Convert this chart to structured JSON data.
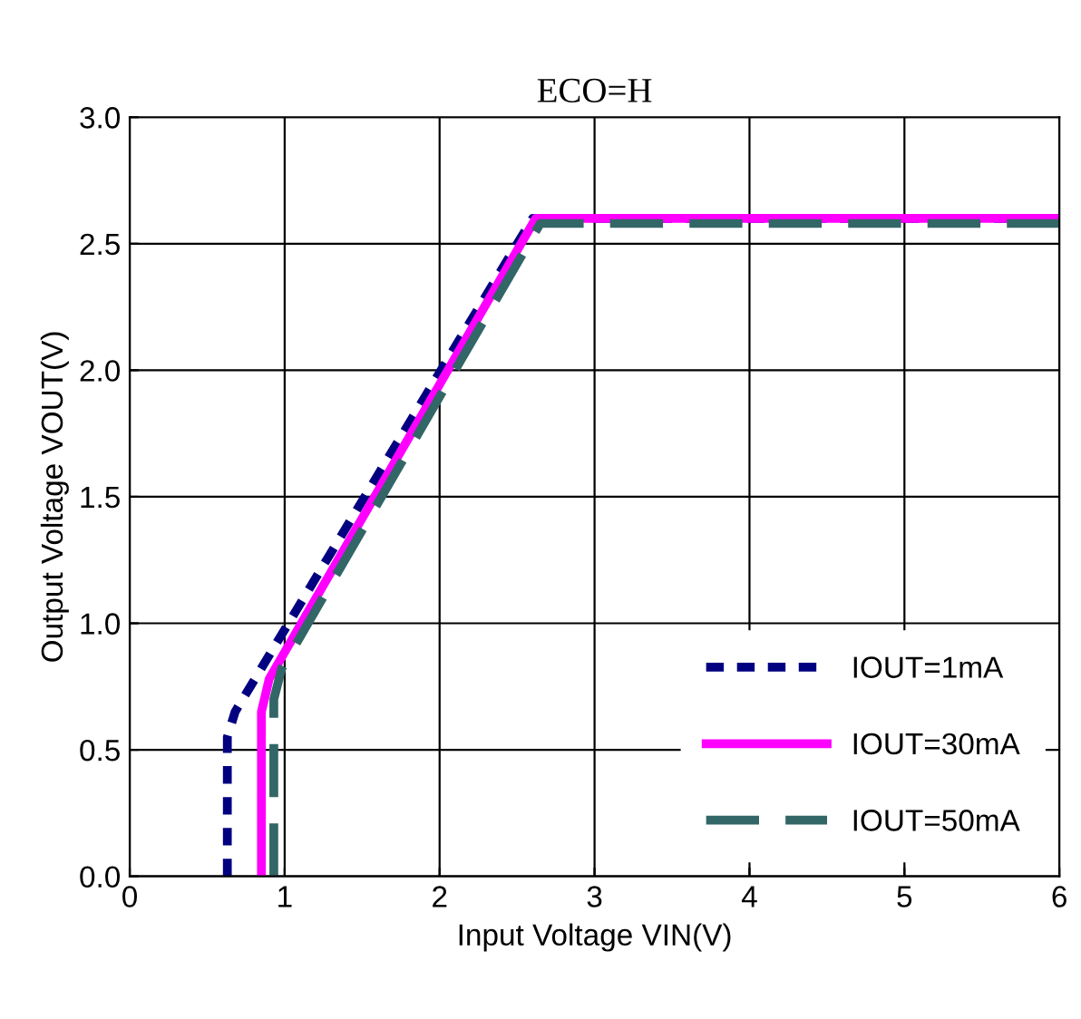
{
  "chart_data": {
    "type": "line",
    "title": "ECO=H",
    "xlabel": "Input Voltage VIN(V)",
    "ylabel": "Output Voltage VOUT(V)",
    "xlim": [
      0,
      6
    ],
    "ylim": [
      0,
      3
    ],
    "xticks": [
      0,
      1,
      2,
      3,
      4,
      5,
      6
    ],
    "yticks": [
      {
        "value": 0,
        "label": "0.0"
      },
      {
        "value": 0.5,
        "label": "0.5"
      },
      {
        "value": 1,
        "label": "1.0"
      },
      {
        "value": 1.5,
        "label": "1.5"
      },
      {
        "value": 2,
        "label": "2.0"
      },
      {
        "value": 2.5,
        "label": "2.5"
      },
      {
        "value": 3,
        "label": "3.0"
      }
    ],
    "grid": true,
    "legend": "bottom right",
    "marker": "none",
    "series": [
      {
        "name": "IOUT=1mA",
        "color": "#000080",
        "line_style": "dotted",
        "x": [
          0.63,
          0.63,
          0.68,
          2.6,
          6
        ],
        "values": [
          0,
          0.55,
          0.65,
          2.6,
          2.6
        ]
      },
      {
        "name": "IOUT=30mA",
        "color": "#ff00ff",
        "line_style": "solid",
        "x": [
          0.85,
          0.85,
          0.9,
          2.62,
          6
        ],
        "values": [
          0,
          0.65,
          0.78,
          2.6,
          2.6
        ]
      },
      {
        "name": "IOUT=50mA",
        "color": "#336666",
        "line_style": "dashed",
        "x": [
          0.93,
          0.93,
          0.98,
          2.65,
          6
        ],
        "values": [
          0,
          0.7,
          0.82,
          2.58,
          2.58
        ]
      }
    ]
  }
}
